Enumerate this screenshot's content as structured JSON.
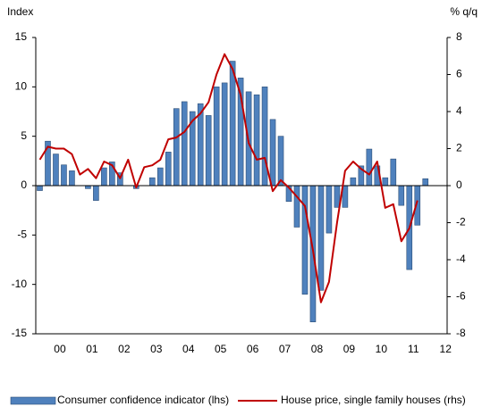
{
  "chart_data": {
    "type": "bar",
    "y_label": "Index",
    "y2_label": "% q/q",
    "x": [
      1999.875,
      2000.125,
      2000.375,
      2000.625,
      2000.875,
      2001.125,
      2001.375,
      2001.625,
      2001.875,
      2002.125,
      2002.375,
      2002.625,
      2002.875,
      2003.125,
      2003.375,
      2003.625,
      2003.875,
      2004.125,
      2004.375,
      2004.625,
      2004.875,
      2005.125,
      2005.375,
      2005.625,
      2005.875,
      2006.125,
      2006.375,
      2006.625,
      2006.875,
      2007.125,
      2007.375,
      2007.625,
      2007.875,
      2008.125,
      2008.375,
      2008.625,
      2008.875,
      2009.125,
      2009.375,
      2009.625,
      2009.875,
      2010.125,
      2010.375,
      2010.625,
      2010.875,
      2011.125,
      2011.375,
      2011.625,
      2011.875
    ],
    "xlim": [
      1999.75,
      2012.55
    ],
    "xticks": [
      {
        "value": 2000.5,
        "label": "00"
      },
      {
        "value": 2001.5,
        "label": "01"
      },
      {
        "value": 2002.5,
        "label": "02"
      },
      {
        "value": 2003.5,
        "label": "03"
      },
      {
        "value": 2004.5,
        "label": "04"
      },
      {
        "value": 2005.5,
        "label": "05"
      },
      {
        "value": 2006.5,
        "label": "06"
      },
      {
        "value": 2007.5,
        "label": "07"
      },
      {
        "value": 2008.5,
        "label": "08"
      },
      {
        "value": 2009.5,
        "label": "09"
      },
      {
        "value": 2010.5,
        "label": "10"
      },
      {
        "value": 2011.5,
        "label": "11"
      },
      {
        "value": 2012.5,
        "label": "12"
      }
    ],
    "ylim": [
      -15,
      15
    ],
    "yticks": [
      -15,
      -10,
      -5,
      0,
      5,
      10,
      15
    ],
    "y2lim": [
      -8,
      8
    ],
    "y2ticks": [
      -8,
      -6,
      -4,
      -2,
      0,
      2,
      4,
      6,
      8
    ],
    "series": [
      {
        "name": "Consumer confidence indicator (lhs)",
        "type": "bar",
        "axis": "y",
        "color": "#4f81bd",
        "values": [
          -0.5,
          4.5,
          3.2,
          2.1,
          1.5,
          0,
          -0.3,
          -1.5,
          1.8,
          2.4,
          1.3,
          0,
          -0.3,
          0,
          0.8,
          1.8,
          3.4,
          7.8,
          8.5,
          7.5,
          8.3,
          7.1,
          10.0,
          10.4,
          12.6,
          10.9,
          9.5,
          9.2,
          10.0,
          6.7,
          5.0,
          -1.6,
          -4.2,
          -11.0,
          -13.8,
          -10.6,
          -4.8,
          -2.2,
          -2.2,
          0.8,
          2.0,
          3.7,
          2.0,
          0.8,
          2.7,
          -2.0,
          -8.5,
          -4.0,
          0.7
        ]
      },
      {
        "name": "House price, single family houses (rhs)",
        "type": "line",
        "axis": "y2",
        "color": "#c00000",
        "values": [
          1.4,
          2.1,
          2.0,
          2.0,
          1.7,
          0.6,
          0.9,
          0.4,
          1.3,
          1.1,
          0.4,
          1.4,
          -0.1,
          1.0,
          1.1,
          1.4,
          2.5,
          2.6,
          2.9,
          3.5,
          3.9,
          4.5,
          6.0,
          7.1,
          6.3,
          4.9,
          2.3,
          1.4,
          1.5,
          -0.3,
          0.3,
          -0.1,
          -0.6,
          -1.1,
          -3.5,
          -6.3,
          -5.2,
          -2.0,
          0.8,
          1.3,
          0.9,
          0.6,
          1.3,
          -1.2,
          -1.0,
          -3.0,
          -2.3,
          -0.8,
          null
        ]
      }
    ]
  }
}
